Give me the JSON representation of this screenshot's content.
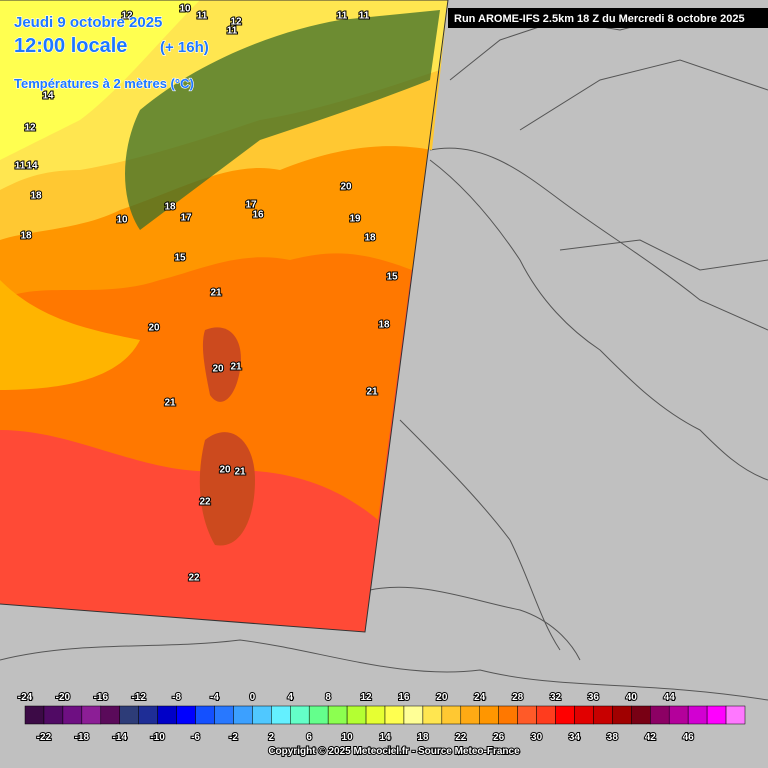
{
  "header": {
    "date": "Jeudi 9 octobre 2025",
    "time": "12:00 locale",
    "offset": "(+ 16h)",
    "field": "Températures à 2 mètres (°C)",
    "run": "Run AROME-IFS 2.5km 18 Z du Mercredi 8 octobre 2025"
  },
  "map_labels": [
    "20",
    "21",
    "20",
    "21",
    "21",
    "20",
    "21",
    "22",
    "22",
    "18",
    "17",
    "18",
    "17",
    "16",
    "18",
    "15",
    "20",
    "19",
    "18",
    "15",
    "18",
    "21",
    "10",
    "11",
    "12",
    "11",
    "11",
    "14",
    "11",
    "12",
    "10",
    "12",
    "11",
    "14"
  ],
  "colorbar": {
    "top_labels": [
      "-24",
      "-20",
      "-16",
      "-12",
      "-8",
      "-4",
      "0",
      "4",
      "8",
      "12",
      "16",
      "20",
      "24",
      "28",
      "32",
      "36",
      "40",
      "44"
    ],
    "bottom_labels": [
      "-22",
      "-18",
      "-14",
      "-10",
      "-6",
      "-2",
      "2",
      "6",
      "10",
      "14",
      "18",
      "22",
      "26",
      "30",
      "34",
      "38",
      "42",
      "46"
    ],
    "colors": [
      "#3c0a46",
      "#500a64",
      "#6e0f82",
      "#8c1e96",
      "#5a0a5a",
      "#2d3c78",
      "#1e2d96",
      "#0000c8",
      "#0000ff",
      "#1450ff",
      "#2878ff",
      "#3ca0ff",
      "#50c8ff",
      "#64f0ff",
      "#64ffc8",
      "#64ff8c",
      "#8cff50",
      "#b4ff32",
      "#e6ff32",
      "#ffff50",
      "#ffff96",
      "#ffe650",
      "#ffc832",
      "#ffaa14",
      "#ff9600",
      "#ff7800",
      "#ff5a28",
      "#ff3c1e",
      "#ff0000",
      "#e10000",
      "#c80000",
      "#a00000",
      "#780014",
      "#8c0064",
      "#b4009b",
      "#d200d2",
      "#ff00ff",
      "#ff78ff"
    ]
  },
  "footer": {
    "copyright": "Copyright © 2025 Meteociel.fr - Source Meteo-France"
  }
}
